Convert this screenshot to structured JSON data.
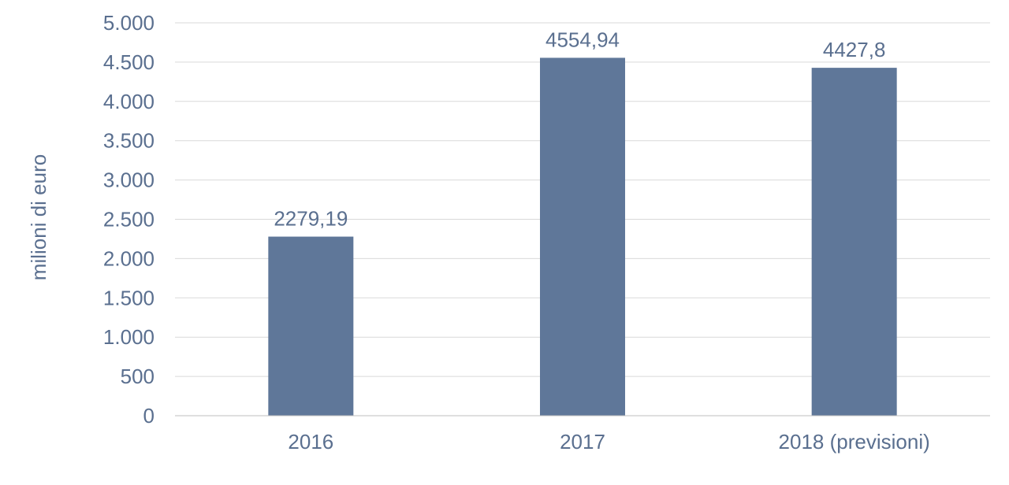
{
  "chart_data": {
    "type": "bar",
    "categories": [
      "2016",
      "2017",
      "2018 (previsioni)"
    ],
    "values": [
      2279.19,
      4554.94,
      4427.8
    ],
    "data_labels": [
      "2279,19",
      "4554,94",
      "4427,8"
    ],
    "ylabel": "milioni di euro",
    "ylim": [
      0,
      5000
    ],
    "yticks": [
      0,
      500,
      1000,
      1500,
      2000,
      2500,
      3000,
      3500,
      4000,
      4500,
      5000
    ],
    "ytick_labels": [
      "0",
      "500",
      "1.000",
      "1.500",
      "2.000",
      "2.500",
      "3.000",
      "3.500",
      "4.000",
      "4.500",
      "5.000"
    ],
    "grid": true,
    "legend": "none",
    "colors": {
      "bar": "#5f7799",
      "text": "#5a6f8f",
      "grid": "#d9d9d9",
      "axis": "#bfbfbf"
    }
  }
}
